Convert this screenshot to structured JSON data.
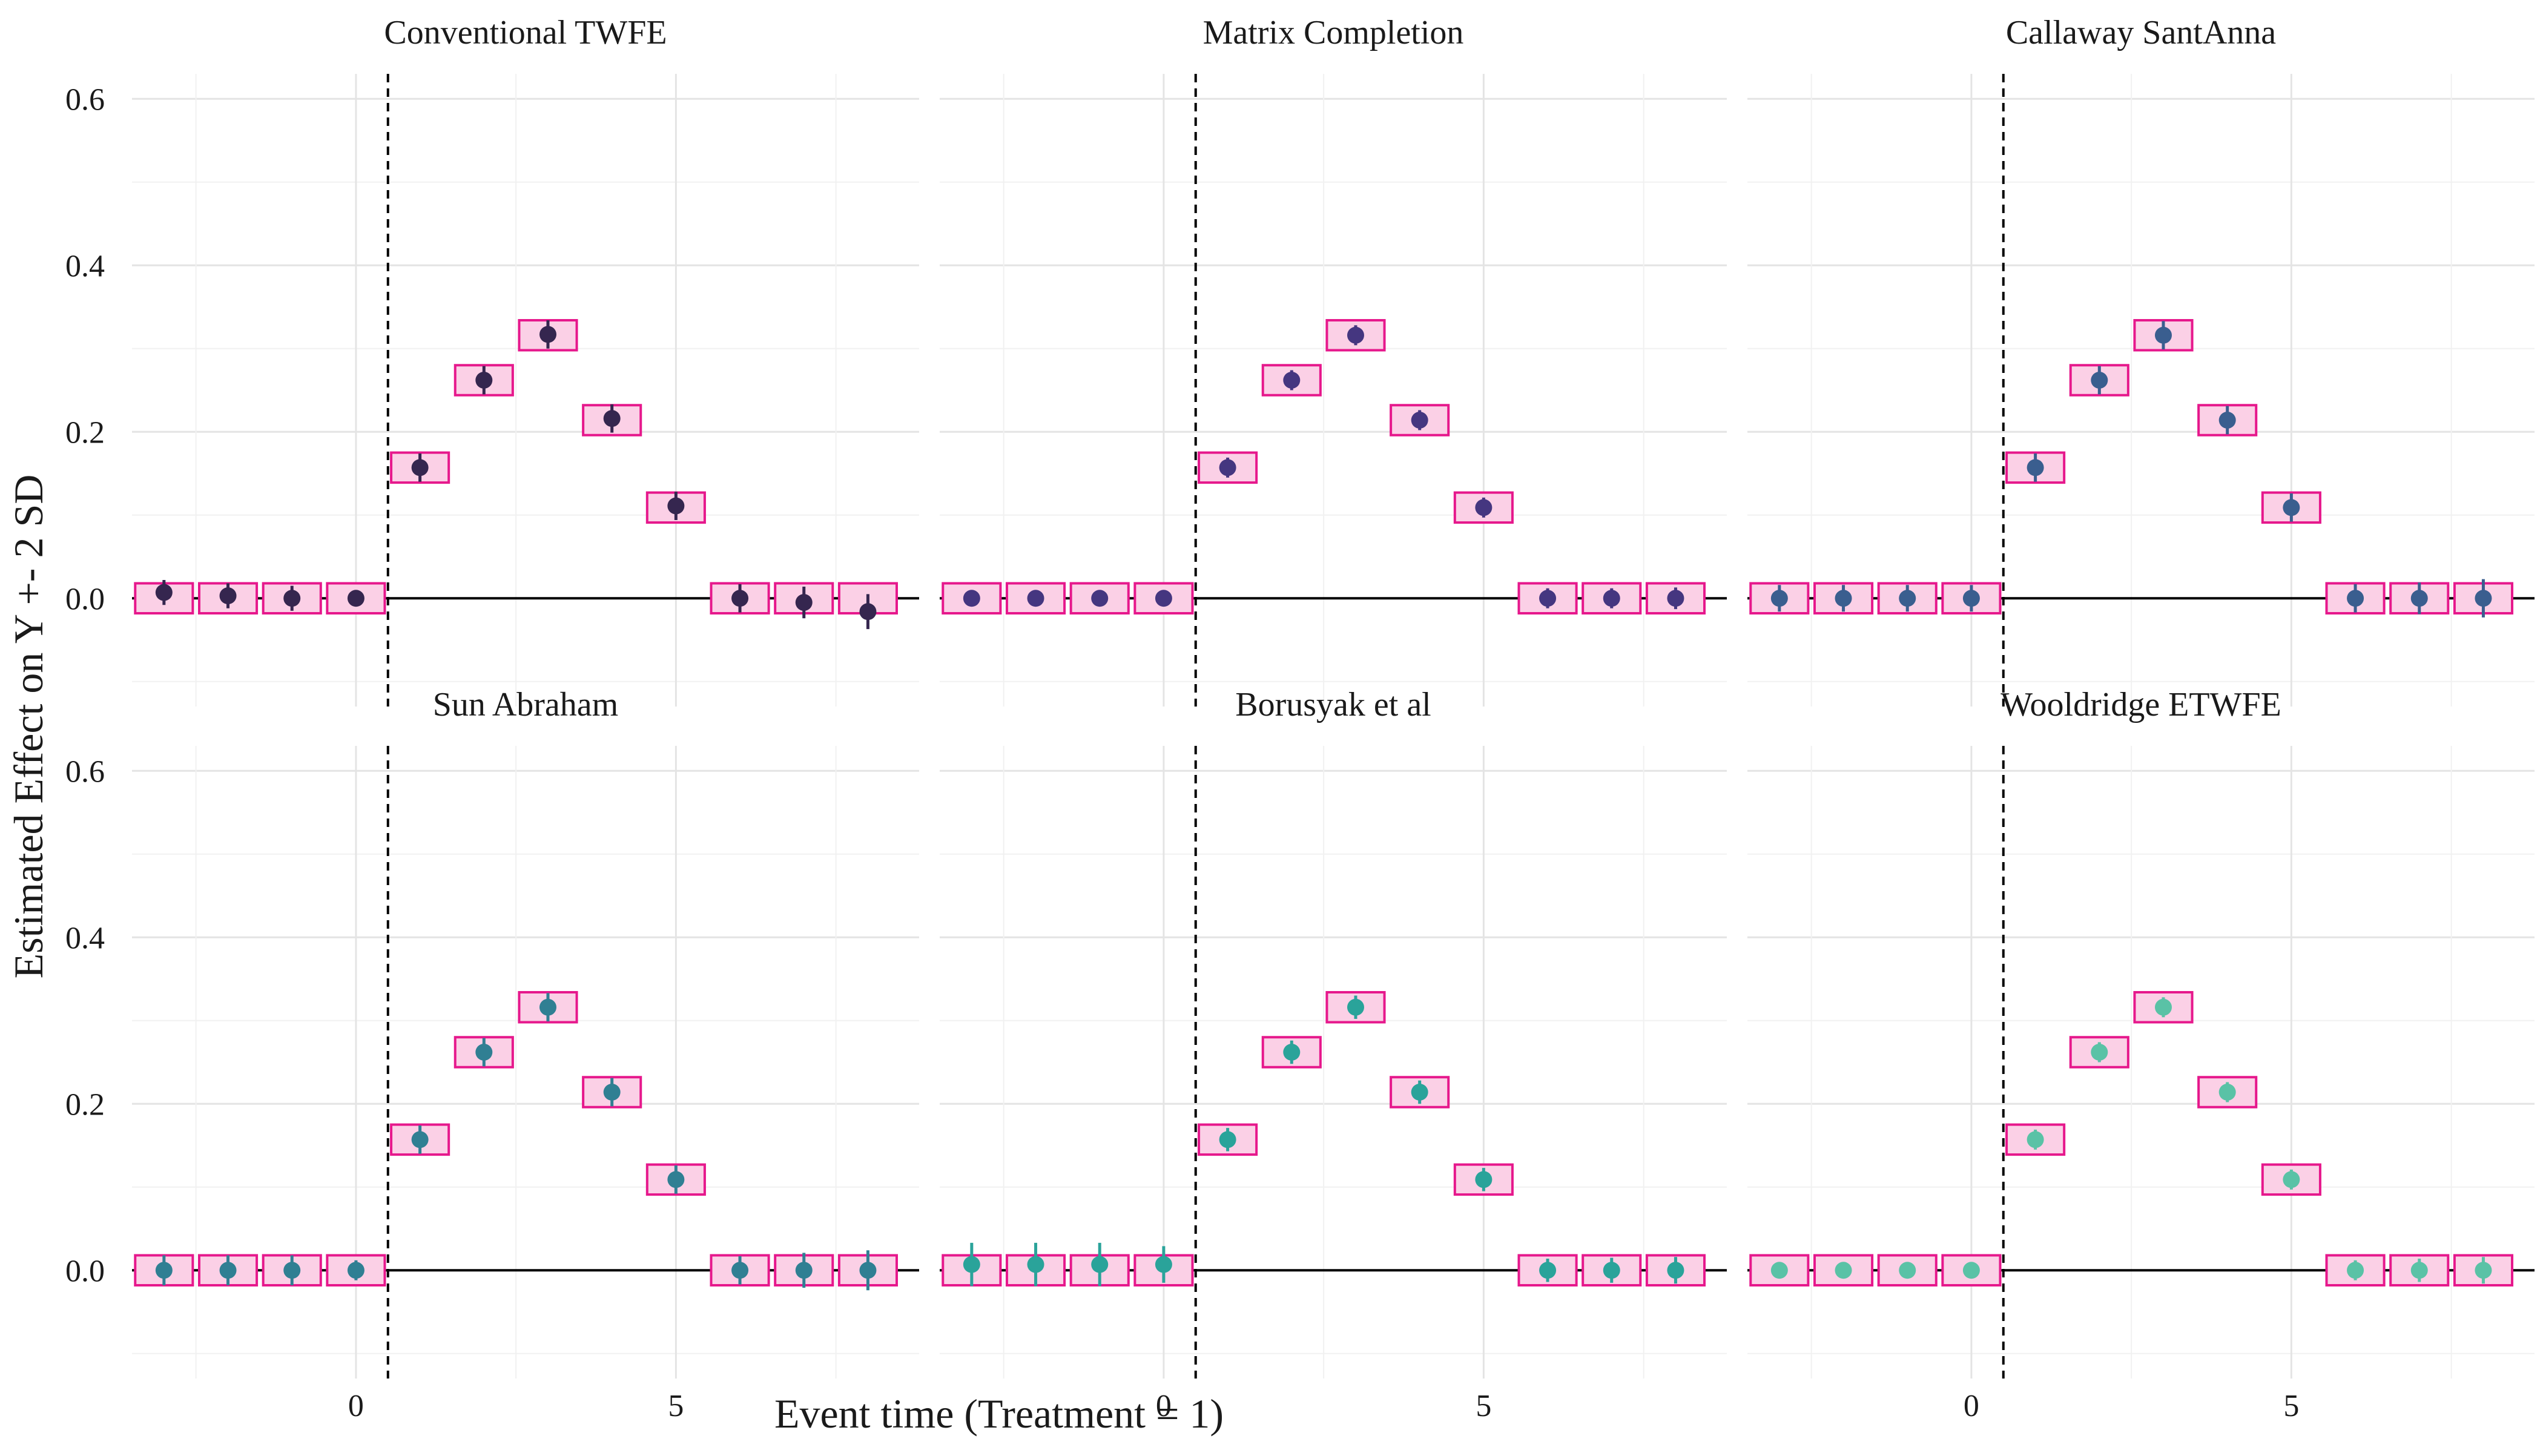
{
  "chart_data": {
    "type": "scatter",
    "subtype": "faceted event-study point estimates with error bars and true-effect boxes",
    "xlabel": "Event time (Treatment = 1)",
    "ylabel": "Estimated Effect on Y +- 2 SD",
    "xticks": [
      0,
      5
    ],
    "yticks": [
      0.0,
      0.2,
      0.4,
      0.6
    ],
    "ytick_labels": [
      "0.0",
      "0.2",
      "0.4",
      "0.6"
    ],
    "xlim": [
      -3.5,
      8.8
    ],
    "ylim": [
      -0.13,
      0.63
    ],
    "grid": true,
    "treatment_line_x": 0.5,
    "reference_line_y": 0,
    "true_effect_boxes": {
      "x": [
        -3,
        -2,
        -1,
        0,
        1,
        2,
        3,
        4,
        5,
        6,
        7,
        8
      ],
      "values": [
        0,
        0,
        0,
        0,
        0.157,
        0.262,
        0.316,
        0.214,
        0.109,
        0,
        0,
        0
      ],
      "color": "#e6188c",
      "fill": "#fbd0e6"
    },
    "panels": [
      {
        "title": "Conventional TWFE",
        "color": "#35264f",
        "x": [
          -3,
          -2,
          -1,
          0,
          1,
          2,
          3,
          4,
          5,
          6,
          7,
          8
        ],
        "values": [
          0.007,
          0.003,
          0.0,
          0.0,
          0.157,
          0.262,
          0.317,
          0.216,
          0.111,
          0.0,
          -0.005,
          -0.016
        ],
        "errors": [
          0.015,
          0.015,
          0.015,
          0.0,
          0.017,
          0.017,
          0.017,
          0.017,
          0.017,
          0.017,
          0.019,
          0.021
        ]
      },
      {
        "title": "Matrix Completion",
        "color": "#453680",
        "x": [
          -3,
          -2,
          -1,
          0,
          1,
          2,
          3,
          4,
          5,
          6,
          7,
          8
        ],
        "values": [
          0.0,
          0.0,
          0.0,
          0.0,
          0.157,
          0.262,
          0.316,
          0.214,
          0.109,
          0.0,
          0.0,
          0.0
        ],
        "errors": [
          0.008,
          0.008,
          0.008,
          0.008,
          0.012,
          0.012,
          0.012,
          0.012,
          0.012,
          0.012,
          0.012,
          0.013
        ]
      },
      {
        "title": "Callaway SantAnna",
        "color": "#3a5e8f",
        "x": [
          -3,
          -2,
          -1,
          0,
          1,
          2,
          3,
          4,
          5,
          6,
          7,
          8
        ],
        "values": [
          0.0,
          0.0,
          0.0,
          0.0,
          0.157,
          0.262,
          0.316,
          0.214,
          0.109,
          0.0,
          0.0,
          0.0
        ],
        "errors": [
          0.016,
          0.016,
          0.016,
          0.016,
          0.017,
          0.017,
          0.017,
          0.017,
          0.017,
          0.017,
          0.019,
          0.023
        ]
      },
      {
        "title": "Sun Abraham",
        "color": "#307f93",
        "x": [
          -3,
          -2,
          -1,
          0,
          1,
          2,
          3,
          4,
          5,
          6,
          7,
          8
        ],
        "values": [
          0.0,
          0.0,
          0.0,
          0.0,
          0.157,
          0.262,
          0.316,
          0.214,
          0.109,
          0.0,
          0.0,
          0.0
        ],
        "errors": [
          0.018,
          0.018,
          0.018,
          0.012,
          0.017,
          0.017,
          0.017,
          0.017,
          0.017,
          0.017,
          0.021,
          0.024
        ]
      },
      {
        "title": "Borusyak et al",
        "color": "#2aa39a",
        "x": [
          -3,
          -2,
          -1,
          0,
          1,
          2,
          3,
          4,
          5,
          6,
          7,
          8
        ],
        "values": [
          0.007,
          0.007,
          0.007,
          0.007,
          0.157,
          0.262,
          0.316,
          0.214,
          0.109,
          0.0,
          0.0,
          0.0
        ],
        "errors": [
          0.026,
          0.026,
          0.026,
          0.022,
          0.014,
          0.014,
          0.014,
          0.014,
          0.014,
          0.014,
          0.015,
          0.016
        ]
      },
      {
        "title": "Wooldridge ETWFE",
        "color": "#5ac2a6",
        "x": [
          -3,
          -2,
          -1,
          0,
          1,
          2,
          3,
          4,
          5,
          6,
          7,
          8
        ],
        "values": [
          0.0,
          0.0,
          0.0,
          0.0,
          0.157,
          0.262,
          0.316,
          0.214,
          0.109,
          0.0,
          0.0,
          0.0
        ],
        "errors": [
          0.008,
          0.008,
          0.008,
          0.008,
          0.012,
          0.012,
          0.012,
          0.012,
          0.012,
          0.012,
          0.014,
          0.016
        ]
      }
    ]
  }
}
